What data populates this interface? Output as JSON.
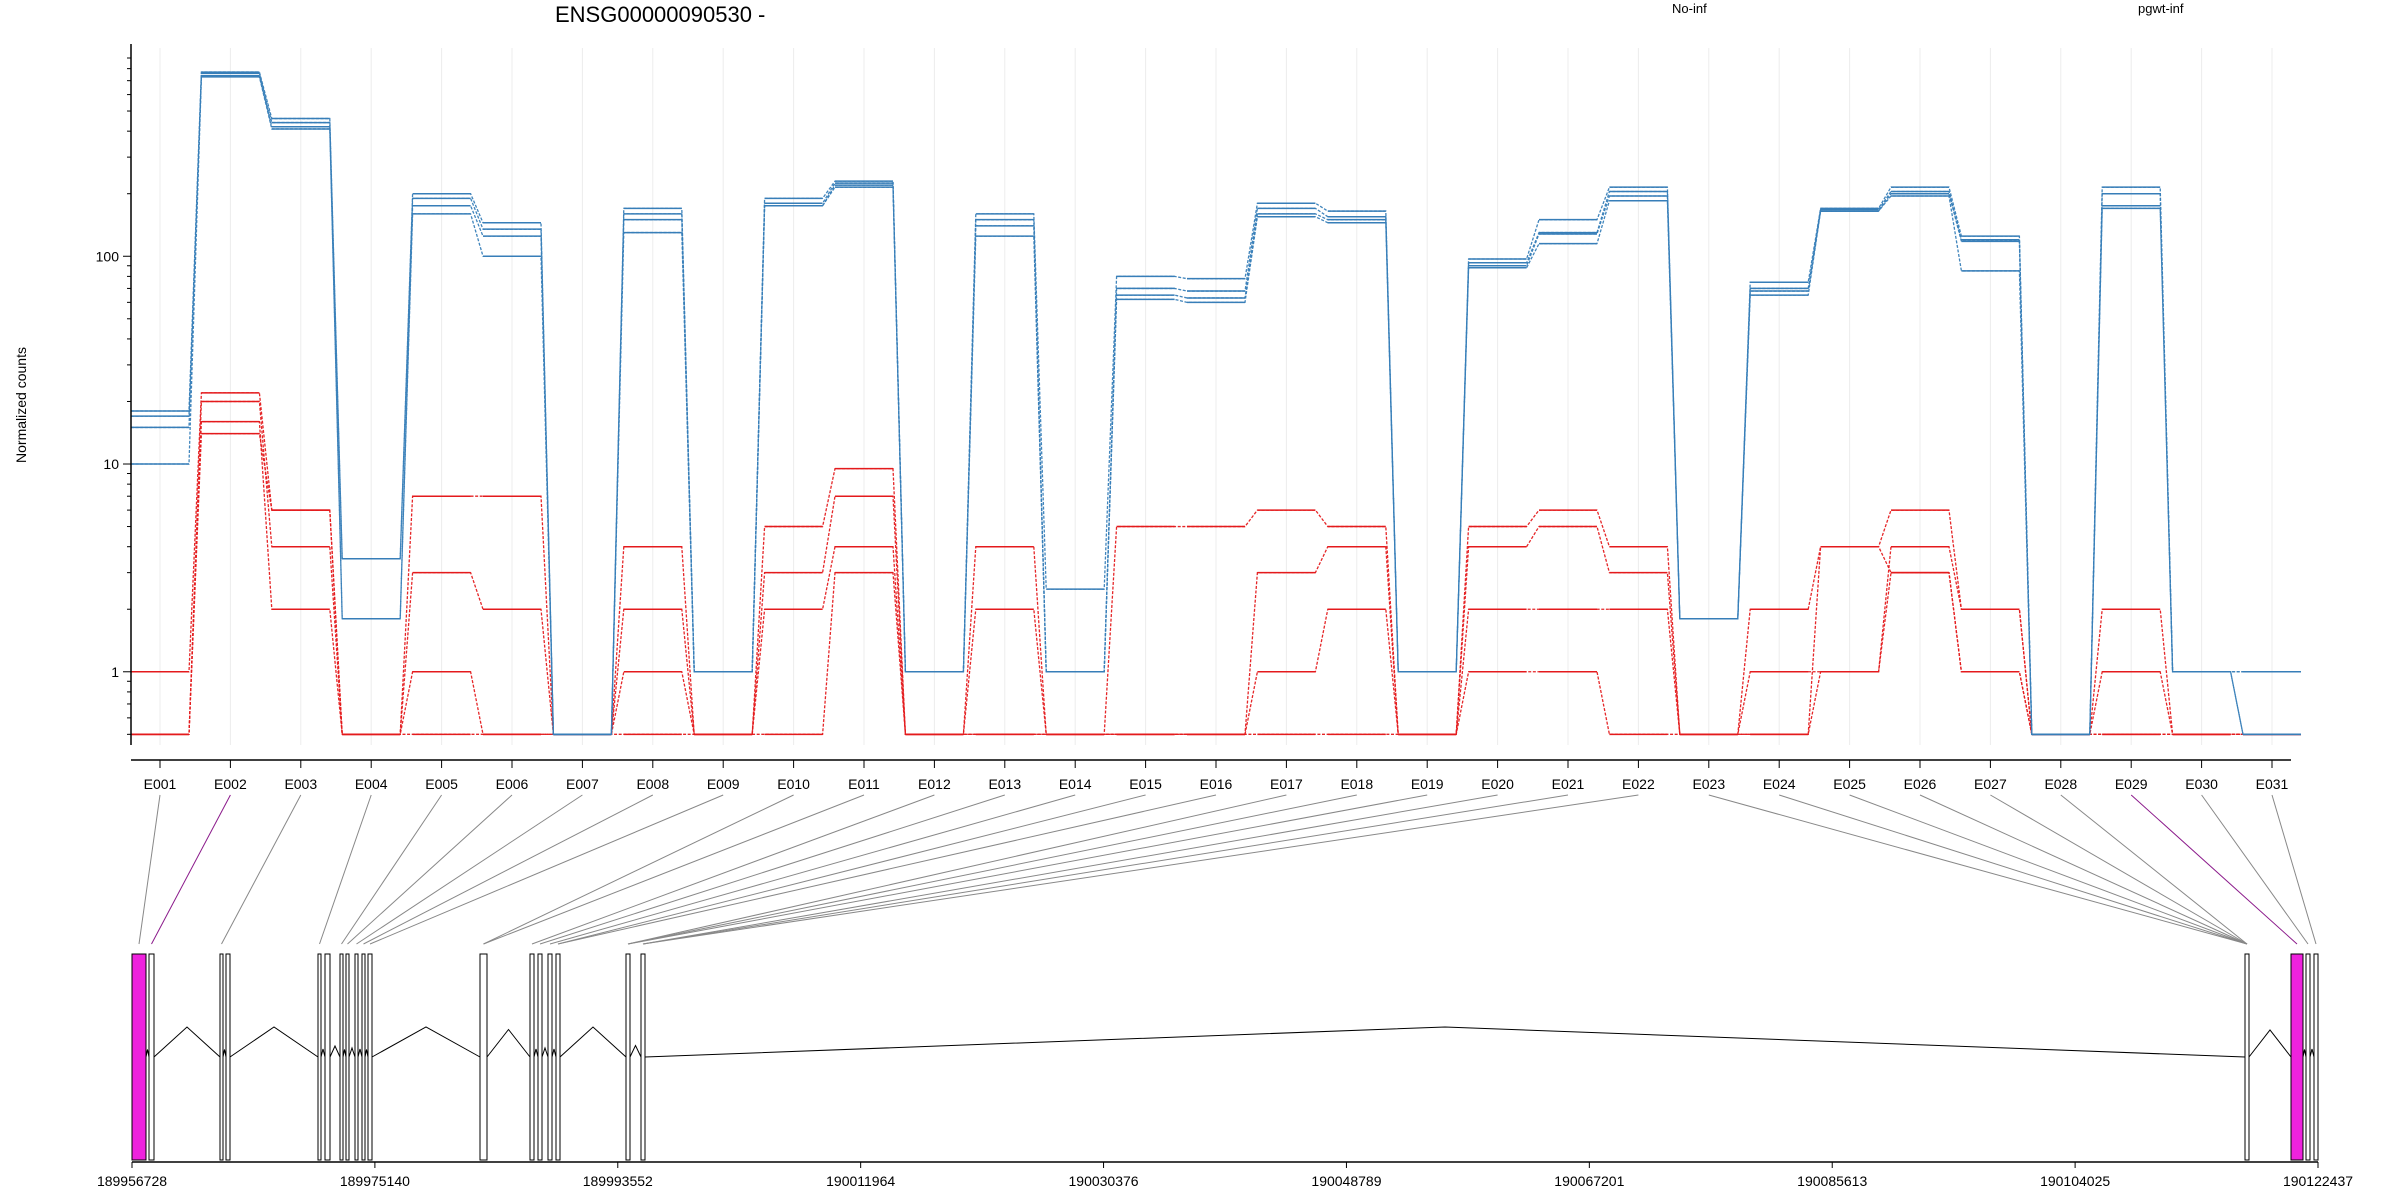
{
  "chart_data": {
    "type": "line",
    "title": "ENSG00000090530 -",
    "ylabel": "Normalized counts",
    "y_scale": "log",
    "ylim": [
      0.48,
      900
    ],
    "y_ticks": [
      {
        "value": 1,
        "label": "1"
      },
      {
        "value": 10,
        "label": "10"
      },
      {
        "value": 100,
        "label": "100"
      }
    ],
    "grid": "vertical, light",
    "legend_placement": "top",
    "categories": [
      "E001",
      "E002",
      "E003",
      "E004",
      "E005",
      "E006",
      "E007",
      "E008",
      "E009",
      "E010",
      "E011",
      "E012",
      "E013",
      "E014",
      "E015",
      "E016",
      "E017",
      "E018",
      "E019",
      "E020",
      "E021",
      "E022",
      "E023",
      "E024",
      "E025",
      "E026",
      "E027",
      "E028",
      "E029",
      "E030",
      "E031"
    ],
    "groups": [
      {
        "name": "No-inf",
        "color": "#e41a1c",
        "samples": [
          [
            1,
            22,
            6,
            0.5,
            7,
            7,
            0.5,
            4,
            0.5,
            5,
            9.5,
            0.5,
            4,
            0.5,
            5,
            5,
            6,
            5,
            0.5,
            5,
            6,
            4,
            0.5,
            2,
            4,
            6,
            2,
            0.5,
            2,
            0.5,
            0.5
          ],
          [
            0.5,
            20,
            4,
            0.5,
            3,
            2,
            0.5,
            2,
            0.5,
            3,
            7,
            0.5,
            2,
            0.5,
            0.5,
            0.5,
            3,
            4,
            0.5,
            4,
            5,
            3,
            0.5,
            1,
            1,
            4,
            2,
            0.5,
            1,
            0.5,
            0.5
          ],
          [
            0.5,
            16,
            2,
            0.5,
            1,
            0.5,
            0.5,
            1,
            0.5,
            2,
            4,
            0.5,
            0.5,
            0.5,
            0.5,
            0.5,
            1,
            2,
            0.5,
            2,
            2,
            2,
            0.5,
            0.5,
            1,
            3,
            1,
            0.5,
            0.5,
            0.5,
            0.5
          ],
          [
            0.5,
            14,
            6,
            0.5,
            0.5,
            0.5,
            0.5,
            0.5,
            0.5,
            0.5,
            3,
            0.5,
            0.5,
            0.5,
            0.5,
            0.5,
            0.5,
            0.5,
            0.5,
            1,
            1,
            0.5,
            0.5,
            0.5,
            4,
            3,
            1,
            0.5,
            0.5,
            0.5,
            0.5
          ]
        ]
      },
      {
        "name": "pgwt-inf",
        "color": "#377eb8",
        "samples": [
          [
            18,
            770,
            460,
            3.5,
            200,
            145,
            0.5,
            170,
            1,
            190,
            230,
            1,
            160,
            2.5,
            80,
            78,
            180,
            165,
            1,
            97,
            150,
            215,
            1.8,
            75,
            170,
            215,
            125,
            0.5,
            215,
            1,
            1
          ],
          [
            17,
            760,
            440,
            3.5,
            190,
            135,
            0.5,
            160,
            1,
            180,
            225,
            1,
            150,
            1,
            70,
            68,
            170,
            155,
            1,
            93,
            130,
            205,
            1.8,
            70,
            168,
            205,
            120,
            0.5,
            200,
            1,
            1
          ],
          [
            15,
            740,
            420,
            1.8,
            175,
            125,
            0.5,
            150,
            1,
            175,
            220,
            1,
            140,
            1,
            65,
            63,
            160,
            150,
            1,
            90,
            128,
            195,
            1.8,
            68,
            165,
            200,
            118,
            0.5,
            175,
            1,
            0.5
          ],
          [
            10,
            730,
            410,
            1.8,
            160,
            100,
            0.5,
            130,
            1,
            175,
            215,
            1,
            125,
            1,
            62,
            60,
            155,
            145,
            1,
            88,
            115,
            185,
            1.8,
            65,
            165,
            195,
            85,
            0.5,
            170,
            1,
            0.5
          ]
        ]
      }
    ],
    "gene_track": {
      "coord_labels": [
        "189956728",
        "189975140",
        "189993552",
        "190011964",
        "190030376",
        "190048789",
        "190067201",
        "190085613",
        "190104025",
        "190122437"
      ],
      "highlight_color": "#ee22dd"
    }
  }
}
